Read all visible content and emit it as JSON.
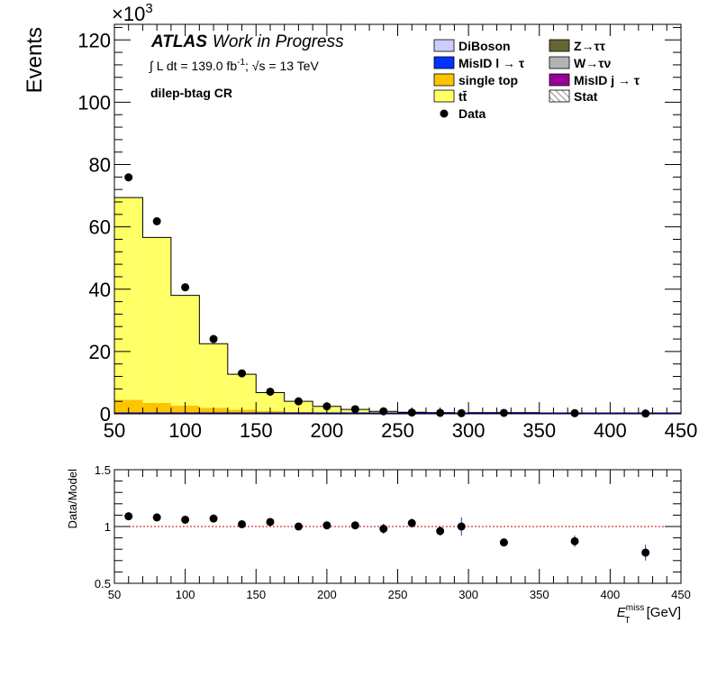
{
  "chart_data": [
    {
      "type": "bar",
      "panel": "main",
      "ylabel": "Events",
      "y_multiplier": "×10",
      "y_multiplier_exp": "3",
      "xlim": [
        50,
        450
      ],
      "ylim": [
        0,
        125
      ],
      "x_ticks": [
        50,
        100,
        150,
        200,
        250,
        300,
        350,
        400,
        450
      ],
      "y_ticks": [
        0,
        20,
        40,
        60,
        80,
        100,
        120
      ],
      "annotations": {
        "atlas": "ATLAS",
        "work": "Work in Progress",
        "lumi": "∫ L dt = 139.0 fb",
        "lumi_sup": "-1",
        "energy": ";  √s = 13 TeV",
        "region": "dilep-btag CR"
      },
      "legend_placement": "top-right",
      "legend": [
        {
          "label": "DiBoson",
          "color": "#ccccff",
          "kind": "box"
        },
        {
          "label": "Z→ττ",
          "color": "#666633",
          "kind": "box"
        },
        {
          "label": "MisID l → τ",
          "color": "#0033ff",
          "kind": "box"
        },
        {
          "label": "W→τν",
          "color": "#b3b3b3",
          "kind": "box"
        },
        {
          "label": "single top",
          "color": "#ffc400",
          "kind": "box"
        },
        {
          "label": "MisID j → τ",
          "color": "#990099",
          "kind": "box"
        },
        {
          "label": "tt̄",
          "color": "#ffff66",
          "kind": "box"
        },
        {
          "label": "Stat",
          "color": "#000000",
          "kind": "hatch"
        },
        {
          "label": "Data",
          "color": "#000000",
          "kind": "marker"
        }
      ],
      "bin_edges": [
        50,
        70,
        90,
        110,
        130,
        150,
        170,
        190,
        210,
        230,
        250,
        270,
        290,
        300,
        350,
        400,
        450
      ],
      "series": [
        {
          "name": "single top",
          "color": "#ffc400",
          "values": [
            4.5,
            3.5,
            2.6,
            1.9,
            1.3,
            0.9,
            0.6,
            0.45,
            0.3,
            0.22,
            0.15,
            0.1,
            0.08,
            0.05,
            0.03,
            0.02
          ]
        },
        {
          "name": "tt̄",
          "color": "#ffff66",
          "values": [
            64.9,
            53.1,
            35.4,
            20.6,
            11.4,
            5.9,
            3.4,
            1.95,
            1.1,
            0.58,
            0.35,
            0.3,
            0.22,
            0.35,
            0.17,
            0.08
          ]
        }
      ],
      "data": {
        "name": "Data",
        "x": [
          60,
          80,
          100,
          120,
          140,
          160,
          180,
          200,
          220,
          240,
          260,
          280,
          295,
          325,
          375,
          425
        ],
        "y": [
          75.9,
          61.8,
          40.6,
          24.0,
          13.0,
          7.1,
          4.0,
          2.4,
          1.5,
          0.8,
          0.4,
          0.3,
          0.2,
          0.3,
          0.2,
          0.1
        ]
      }
    },
    {
      "type": "scatter",
      "panel": "ratio",
      "ylabel": "Data/Model",
      "xlabel": "E",
      "xlabel_sub": "T",
      "xlabel_sup": "miss",
      "xlabel_unit": " [GeV]",
      "xlim": [
        50,
        450
      ],
      "ylim": [
        0.5,
        1.5
      ],
      "x_ticks": [
        50,
        100,
        150,
        200,
        250,
        300,
        350,
        400,
        450
      ],
      "y_ticks": [
        0.5,
        1,
        1.5
      ],
      "reference_line": 1,
      "x": [
        60,
        80,
        100,
        120,
        140,
        160,
        180,
        200,
        220,
        240,
        260,
        280,
        295,
        325,
        375,
        425
      ],
      "y": [
        1.09,
        1.08,
        1.06,
        1.07,
        1.02,
        1.04,
        1.0,
        1.01,
        1.01,
        0.98,
        1.03,
        0.96,
        1.0,
        0.86,
        0.87,
        0.77
      ],
      "yerr": [
        0.005,
        0.006,
        0.007,
        0.009,
        0.012,
        0.016,
        0.021,
        0.027,
        0.035,
        0.045,
        0.04,
        0.04,
        0.08,
        0.03,
        0.05,
        0.07
      ]
    }
  ]
}
